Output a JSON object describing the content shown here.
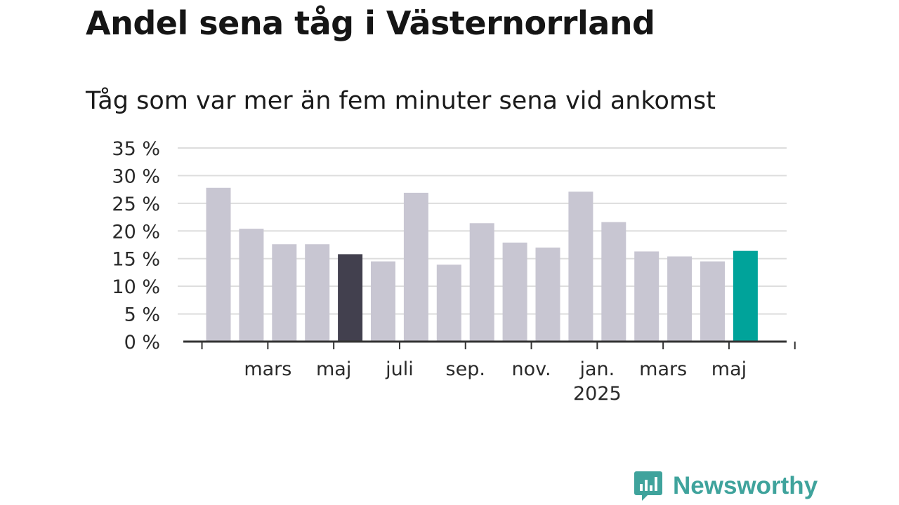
{
  "title": "Andel sena tåg i Västernorrland",
  "subtitle": "Tåg som var mer än fem minuter sena vid ankomst",
  "brand": {
    "name": "Newsworthy",
    "logo_icon": "chat-bubble-bar-chart-icon",
    "color": "#3fa39c"
  },
  "colors": {
    "default_bar": "#c8c6d2",
    "highlight_dark": "#42404e",
    "highlight_latest": "#00a39a",
    "gridline": "#dddddd",
    "axis": "#333333"
  },
  "chart_data": {
    "type": "bar",
    "title": "Andel sena tåg i Västernorrland",
    "subtitle": "Tåg som var mer än fem minuter sena vid ankomst",
    "xlabel": "",
    "ylabel": "",
    "ylim": [
      0,
      35
    ],
    "yticks": [
      0,
      5,
      10,
      15,
      20,
      25,
      30,
      35
    ],
    "ytick_labels": [
      "0 %",
      "5 %",
      "10 %",
      "15 %",
      "20 %",
      "25 %",
      "30 %",
      "35 %"
    ],
    "xtick_labels": [
      {
        "label": "mars",
        "index": 1.5
      },
      {
        "label": "maj",
        "index": 3.5
      },
      {
        "label": "juli",
        "index": 5.5
      },
      {
        "label": "sep.",
        "index": 7.5
      },
      {
        "label": "nov.",
        "index": 9.5
      },
      {
        "label": "jan.",
        "index": 11.5,
        "sublabel": "2025"
      },
      {
        "label": "mars",
        "index": 13.5
      },
      {
        "label": "maj",
        "index": 15.5
      }
    ],
    "values": [
      27.8,
      20.4,
      17.6,
      17.6,
      15.8,
      14.5,
      26.9,
      13.9,
      21.4,
      17.9,
      17.0,
      27.1,
      21.6,
      16.3,
      15.4,
      14.5,
      16.4
    ],
    "highlight": {
      "4": "dark",
      "16": "latest"
    },
    "grid": true,
    "legend": "none"
  }
}
